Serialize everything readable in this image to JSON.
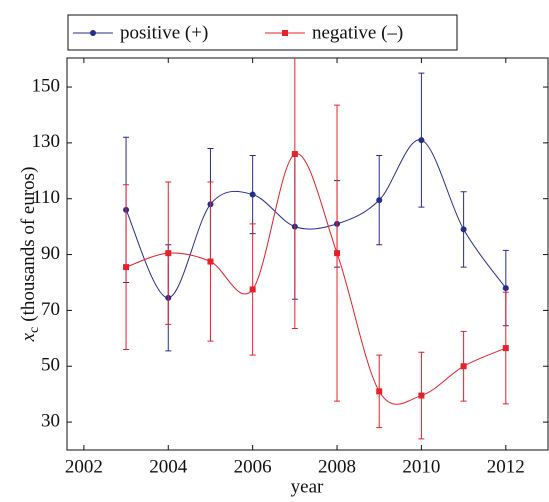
{
  "chart_data": {
    "type": "line",
    "x_label": "year",
    "y_label": {
      "symbol": "x",
      "subscript": "c",
      "text": "(thousands of euros)"
    },
    "x": [
      2003,
      2004,
      2005,
      2006,
      2007,
      2008,
      2009,
      2010,
      2011,
      2012
    ],
    "series": [
      {
        "name": "positive (+)",
        "color": "#262e8c",
        "marker": "circle",
        "values": [
          106,
          74.5,
          108,
          111.5,
          100,
          101,
          109.5,
          131,
          99,
          78
        ],
        "errors": [
          26,
          19,
          20,
          14,
          26,
          15.5,
          16,
          24,
          13.5,
          13.5
        ]
      },
      {
        "name": "negative (–)",
        "color": "#e8202a",
        "marker": "square",
        "values": [
          85.5,
          90.5,
          87.5,
          77.5,
          126,
          90.5,
          41,
          39.5,
          50,
          56.5
        ],
        "errors": [
          29.5,
          25.5,
          28.5,
          23.5,
          62.5,
          53,
          13,
          15.5,
          12.5,
          20
        ]
      }
    ],
    "xlim": [
      2001.6,
      2013
    ],
    "ylim": [
      20,
      160.4
    ],
    "xticks": [
      2002,
      2004,
      2006,
      2008,
      2010,
      2012
    ],
    "yticks": [
      30,
      50,
      70,
      90,
      110,
      130,
      150
    ],
    "smooth": true,
    "grid": false,
    "legend": "top"
  }
}
